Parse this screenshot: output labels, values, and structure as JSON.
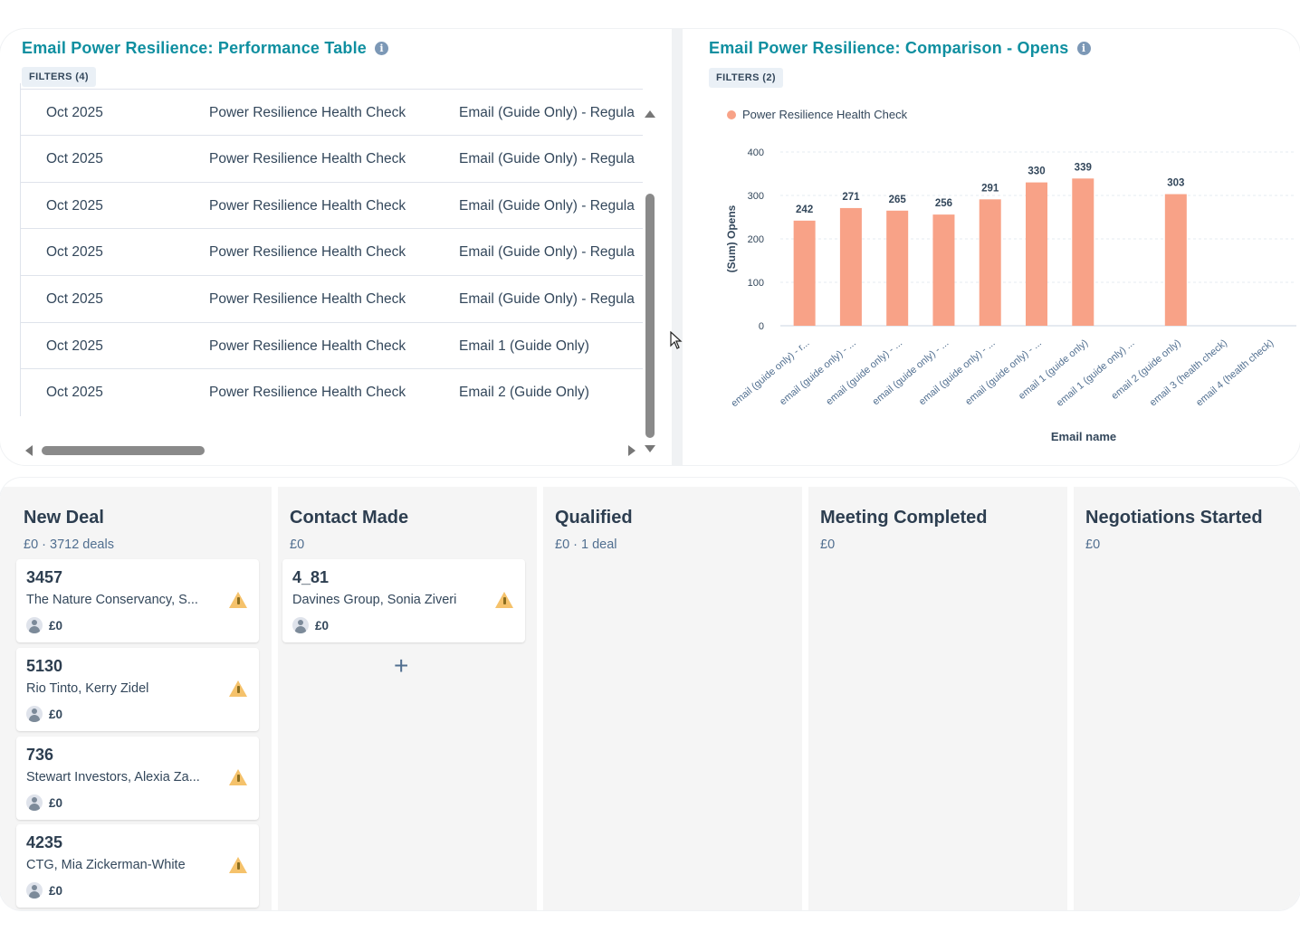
{
  "performance_table": {
    "title": "Email Power Resilience: Performance Table",
    "filters_label": "FILTERS (4)",
    "rows": [
      {
        "month": "Oct 2025",
        "campaign": "Power Resilience Health Check",
        "email": "Email (Guide Only) - Regula"
      },
      {
        "month": "Oct 2025",
        "campaign": "Power Resilience Health Check",
        "email": "Email (Guide Only) - Regula"
      },
      {
        "month": "Oct 2025",
        "campaign": "Power Resilience Health Check",
        "email": "Email (Guide Only) - Regula"
      },
      {
        "month": "Oct 2025",
        "campaign": "Power Resilience Health Check",
        "email": "Email (Guide Only) - Regula"
      },
      {
        "month": "Oct 2025",
        "campaign": "Power Resilience Health Check",
        "email": "Email (Guide Only) - Regula"
      },
      {
        "month": "Oct 2025",
        "campaign": "Power Resilience Health Check",
        "email": "Email 1 (Guide Only)"
      },
      {
        "month": "Oct 2025",
        "campaign": "Power Resilience Health Check",
        "email": "Email 2 (Guide Only)"
      }
    ]
  },
  "comparison_chart": {
    "title": "Email Power Resilience: Comparison - Opens",
    "filters_label": "FILTERS (2)"
  },
  "chart_data": {
    "type": "bar",
    "title": "Email Power Resilience: Comparison - Opens",
    "xlabel": "Email name",
    "ylabel": "(Sum) Opens",
    "ylim": [
      0,
      400
    ],
    "yticks": [
      "0",
      "100",
      "200",
      "300",
      "400"
    ],
    "legend": "top-left",
    "categories": [
      "email (guide only) - r...",
      "email (guide only) - ...",
      "email (guide only) - ...",
      "email (guide only) - ...",
      "email (guide only) - ...",
      "email (guide only) - ...",
      "email 1 (guide only)",
      "email 1 (guide only) ...",
      "email 2 (guide only)",
      "email 3 (health check)",
      "email 4 (health check)"
    ],
    "series": [
      {
        "name": "Power Resilience Health Check",
        "color": "#f8a287",
        "values": [
          242,
          271,
          265,
          256,
          291,
          330,
          339,
          null,
          303,
          null,
          null
        ]
      }
    ]
  },
  "pipeline": {
    "columns": [
      {
        "title": "New Deal",
        "summary": "£0 · 3712 deals",
        "deals": [
          {
            "id": "3457",
            "company": "The Nature Conservancy, S...",
            "amount": "£0"
          },
          {
            "id": "5130",
            "company": "Rio Tinto, Kerry Zidel",
            "amount": "£0"
          },
          {
            "id": "736",
            "company": "Stewart Investors, Alexia Za...",
            "amount": "£0"
          },
          {
            "id": "4235",
            "company": "CTG, Mia Zickerman-White",
            "amount": "£0"
          }
        ]
      },
      {
        "title": "Contact Made",
        "summary": "£0",
        "deals": [
          {
            "id": "4_81",
            "company": "Davines Group, Sonia Ziveri",
            "amount": "£0"
          }
        ],
        "add_label": "+"
      },
      {
        "title": "Qualified",
        "summary": "£0 · 1 deal",
        "deals": []
      },
      {
        "title": "Meeting Completed",
        "summary": "£0",
        "deals": []
      },
      {
        "title": "Negotiations Started",
        "summary": "£0",
        "deals": []
      }
    ]
  }
}
